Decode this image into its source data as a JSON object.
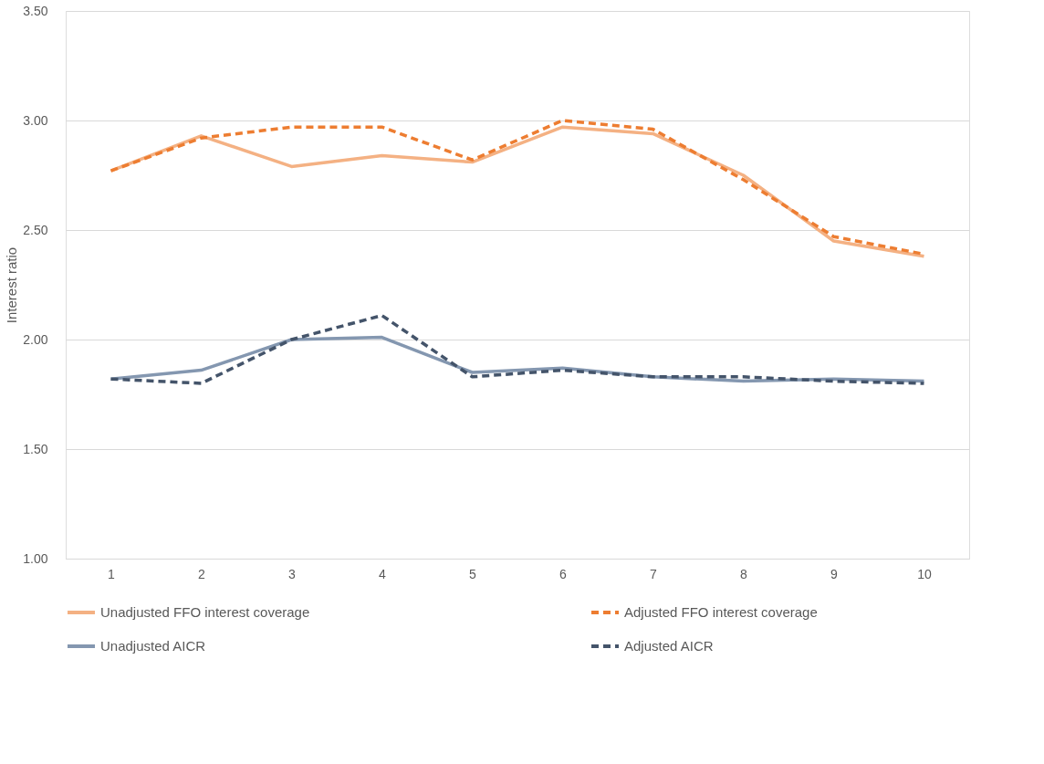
{
  "chart_data": {
    "type": "line",
    "ylabel": "Interest ratio",
    "categories": [
      "1",
      "2",
      "3",
      "4",
      "5",
      "6",
      "7",
      "8",
      "9",
      "10"
    ],
    "series": [
      {
        "name": "Unadjusted FFO interest coverage",
        "color": "#f4b183",
        "line_style": "solid",
        "values": [
          2.77,
          2.93,
          2.79,
          2.84,
          2.81,
          2.97,
          2.94,
          2.75,
          2.45,
          2.38
        ]
      },
      {
        "name": "Adjusted FFO interest coverage",
        "color": "#ed7d31",
        "line_style": "dashed",
        "values": [
          2.77,
          2.92,
          2.97,
          2.97,
          2.82,
          3.0,
          2.96,
          2.73,
          2.47,
          2.39
        ]
      },
      {
        "name": "Unadjusted AICR",
        "color": "#8497b0",
        "line_style": "solid",
        "values": [
          1.82,
          1.86,
          2.0,
          2.01,
          1.85,
          1.87,
          1.83,
          1.81,
          1.82,
          1.81
        ]
      },
      {
        "name": "Adjusted AICR",
        "color": "#44546a",
        "line_style": "dashed",
        "values": [
          1.82,
          1.8,
          2.0,
          2.11,
          1.83,
          1.86,
          1.83,
          1.83,
          1.81,
          1.8
        ]
      }
    ],
    "ylim": [
      1.0,
      3.5
    ],
    "yticks": [
      {
        "value": 1.0,
        "label": "1.00"
      },
      {
        "value": 1.5,
        "label": "1.50"
      },
      {
        "value": 2.0,
        "label": "2.00"
      },
      {
        "value": 2.5,
        "label": "2.50"
      },
      {
        "value": 3.0,
        "label": "3.00"
      },
      {
        "value": 3.5,
        "label": "3.50"
      }
    ],
    "grid": "y",
    "legend": "bottom",
    "marker": "none"
  }
}
